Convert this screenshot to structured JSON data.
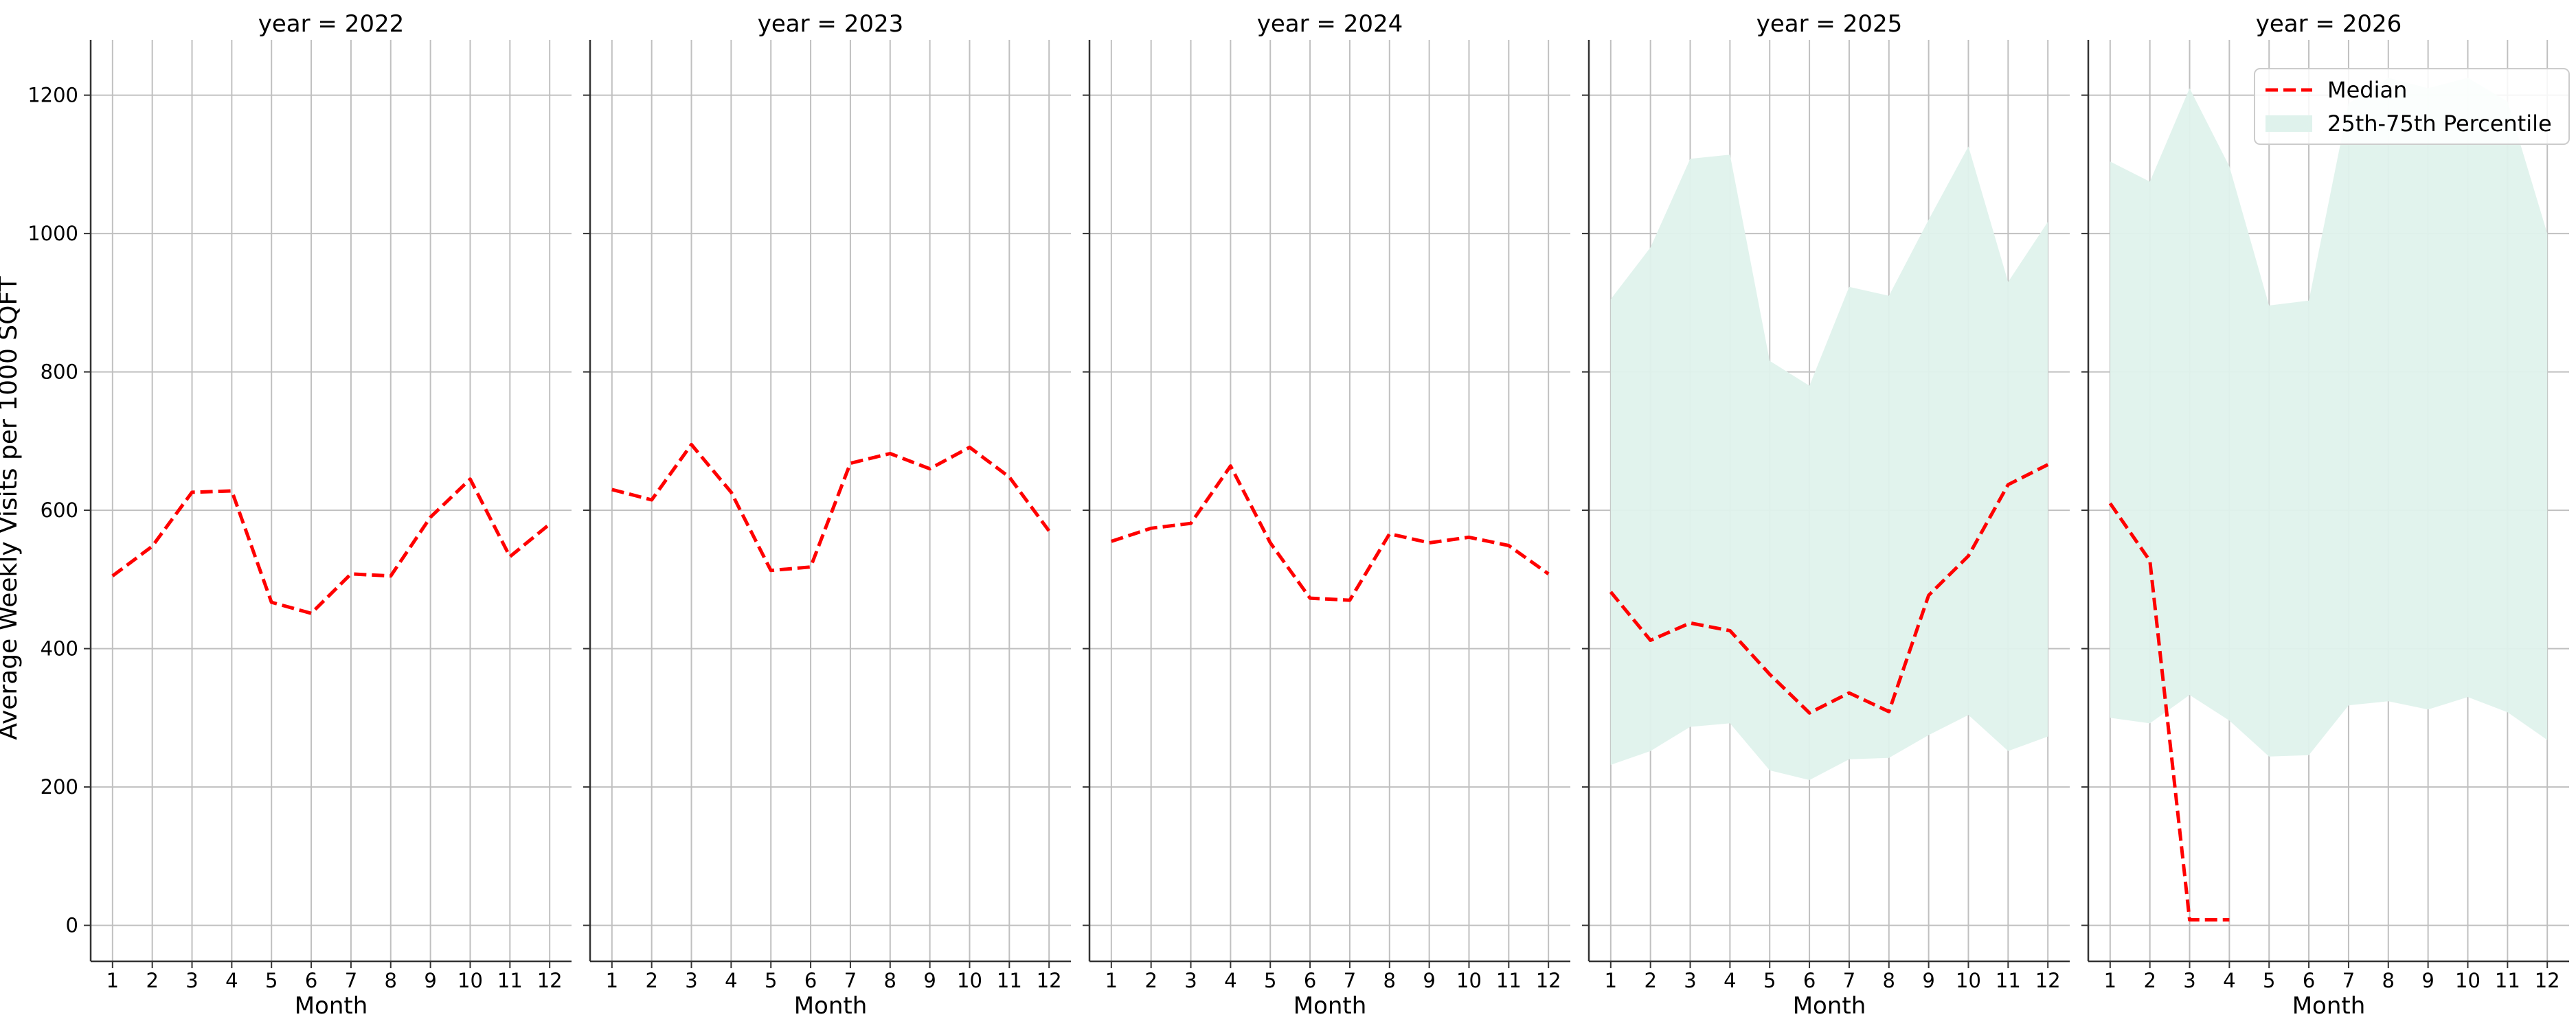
{
  "chart_data": {
    "type": "line",
    "ylabel": "Average Weekly Visits per 1000 SQFT",
    "xlabel": "Month",
    "ylim": [
      -52,
      1280
    ],
    "yticks": [
      0,
      200,
      400,
      600,
      800,
      1000,
      1200
    ],
    "xticks": [
      1,
      2,
      3,
      4,
      5,
      6,
      7,
      8,
      9,
      10,
      11,
      12
    ],
    "grid": true,
    "legend": {
      "position": "top-right",
      "median_label": "Median",
      "band_label": "25th-75th Percentile"
    },
    "colors": {
      "median": "#ff0000",
      "band": "#dff2ec",
      "grid": "#c0c0c0",
      "axis": "#333333"
    },
    "panels": [
      {
        "title": "year = 2022",
        "median": [
          [
            1,
            505
          ],
          [
            2,
            548
          ],
          [
            3,
            626
          ],
          [
            4,
            628
          ],
          [
            5,
            467
          ],
          [
            6,
            451
          ],
          [
            7,
            508
          ],
          [
            8,
            505
          ],
          [
            9,
            590
          ],
          [
            10,
            645
          ],
          [
            11,
            533
          ],
          [
            12,
            580
          ]
        ]
      },
      {
        "title": "year = 2023",
        "median": [
          [
            1,
            630
          ],
          [
            2,
            615
          ],
          [
            3,
            695
          ],
          [
            4,
            626
          ],
          [
            5,
            513
          ],
          [
            6,
            518
          ],
          [
            7,
            668
          ],
          [
            8,
            682
          ],
          [
            9,
            660
          ],
          [
            10,
            691
          ],
          [
            11,
            648
          ],
          [
            12,
            570
          ]
        ]
      },
      {
        "title": "year = 2024",
        "median": [
          [
            1,
            555
          ],
          [
            2,
            574
          ],
          [
            3,
            581
          ],
          [
            4,
            664
          ],
          [
            5,
            553
          ],
          [
            6,
            473
          ],
          [
            7,
            470
          ],
          [
            8,
            566
          ],
          [
            9,
            553
          ],
          [
            10,
            561
          ],
          [
            11,
            549
          ],
          [
            12,
            508
          ]
        ]
      },
      {
        "title": "year = 2025",
        "median": [
          [
            1,
            482
          ],
          [
            2,
            412
          ],
          [
            3,
            437
          ],
          [
            4,
            426
          ],
          [
            5,
            363
          ],
          [
            6,
            307
          ],
          [
            7,
            336
          ],
          [
            8,
            309
          ],
          [
            9,
            477
          ],
          [
            10,
            534
          ],
          [
            11,
            637
          ],
          [
            12,
            666
          ]
        ],
        "band_low": [
          [
            1,
            232
          ],
          [
            2,
            252
          ],
          [
            3,
            287
          ],
          [
            4,
            292
          ],
          [
            5,
            224
          ],
          [
            6,
            210
          ],
          [
            7,
            240
          ],
          [
            8,
            242
          ],
          [
            9,
            275
          ],
          [
            10,
            304
          ],
          [
            11,
            252
          ],
          [
            12,
            273
          ]
        ],
        "band_high": [
          [
            1,
            905
          ],
          [
            2,
            980
          ],
          [
            3,
            1108
          ],
          [
            4,
            1114
          ],
          [
            5,
            816
          ],
          [
            6,
            780
          ],
          [
            7,
            923
          ],
          [
            8,
            910
          ],
          [
            9,
            1020
          ],
          [
            10,
            1126
          ],
          [
            11,
            930
          ],
          [
            12,
            1017
          ]
        ]
      },
      {
        "title": "year = 2026",
        "median": [
          [
            1,
            610
          ],
          [
            2,
            527
          ],
          [
            3,
            8
          ],
          [
            4,
            8
          ]
        ],
        "band_low": [
          [
            1,
            300
          ],
          [
            2,
            292
          ],
          [
            3,
            333
          ],
          [
            4,
            296
          ],
          [
            5,
            244
          ],
          [
            6,
            246
          ],
          [
            7,
            318
          ],
          [
            8,
            324
          ],
          [
            9,
            312
          ],
          [
            10,
            330
          ],
          [
            11,
            308
          ],
          [
            12,
            268
          ]
        ],
        "band_high": [
          [
            1,
            1104
          ],
          [
            2,
            1075
          ],
          [
            3,
            1210
          ],
          [
            4,
            1097
          ],
          [
            5,
            896
          ],
          [
            6,
            903
          ],
          [
            7,
            1188
          ],
          [
            8,
            1225
          ],
          [
            9,
            1210
          ],
          [
            10,
            1225
          ],
          [
            11,
            1191
          ],
          [
            12,
            1000
          ]
        ]
      }
    ]
  }
}
